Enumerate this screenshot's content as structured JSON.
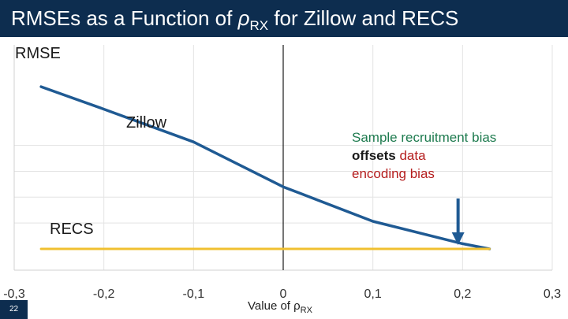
{
  "title": {
    "prefix": "RMSEs as a Function of ",
    "symbol": "ρ",
    "subscript": "RX",
    "suffix": " for Zillow and RECS"
  },
  "slide_number": "22",
  "chart_data": {
    "type": "line",
    "ylabel": "RMSE",
    "xlabel": {
      "text": "Value of ρ",
      "subscript": "RX"
    },
    "xlim": [
      -0.3,
      0.3
    ],
    "ylim": [
      0,
      1
    ],
    "x_ticks": [
      -0.3,
      -0.2,
      -0.1,
      0,
      0.1,
      0.2,
      0.3
    ],
    "x_tick_labels": [
      "-0,3",
      "-0,2",
      "-0,1",
      "0",
      "0,1",
      "0,2",
      "0,3"
    ],
    "y_gridlines": [
      0.25,
      0.5,
      0.75,
      1.0
    ],
    "grid": true,
    "series": [
      {
        "name": "Zillow",
        "color": "#1f5a93",
        "x": [
          -0.27,
          -0.2,
          -0.1,
          0,
          0.1,
          0.2,
          0.23
        ],
        "y": [
          0.94,
          0.81,
          0.62,
          0.36,
          0.16,
          0.03,
          0.0
        ]
      },
      {
        "name": "RECS",
        "color": "#f0c030",
        "x": [
          -0.27,
          0.23
        ],
        "y": [
          0.0,
          0.0
        ]
      }
    ],
    "annotation": {
      "parts": [
        {
          "text": "Sample recruitment bias ",
          "style": "normal"
        },
        {
          "text": "offsets",
          "style": "strong"
        },
        {
          "text": " data",
          "style": "red"
        },
        {
          "text": "encoding bias",
          "style": "red"
        }
      ],
      "arrow_x": 0.195,
      "arrow_color": "#1f5a93"
    }
  }
}
